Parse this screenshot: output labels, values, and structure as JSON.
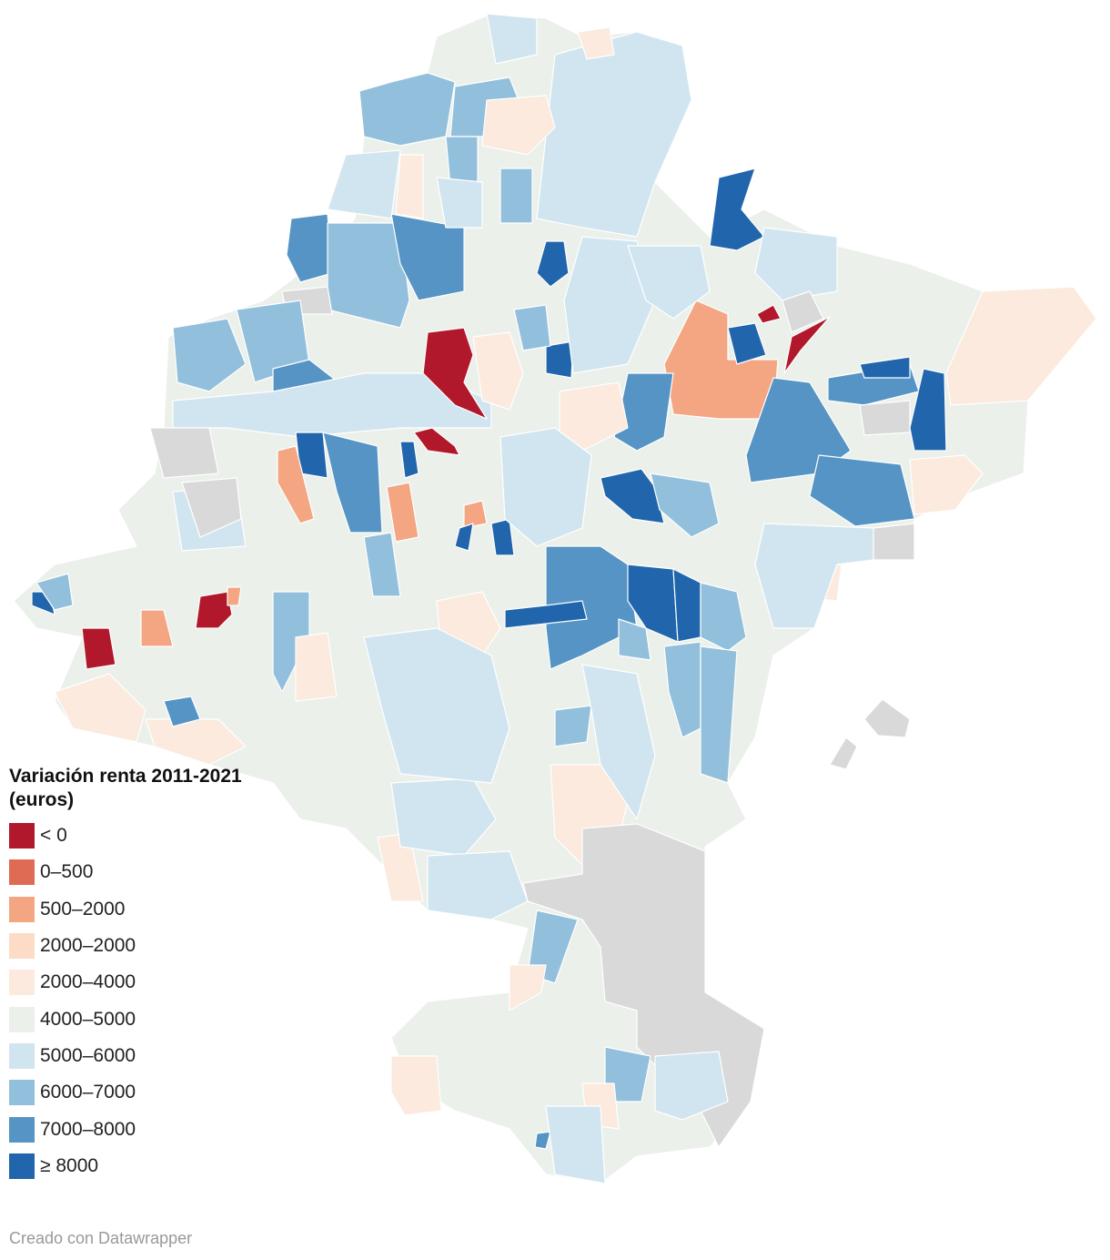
{
  "legend": {
    "title": "Variación renta 2011-2021\n(euros)",
    "items": [
      {
        "label": "< 0",
        "color": "#b2182b"
      },
      {
        "label": "0–500",
        "color": "#e06b55"
      },
      {
        "label": "500–2000",
        "color": "#f4a582"
      },
      {
        "label": "2000–2000",
        "color": "#fcdbc7"
      },
      {
        "label": "2000–4000",
        "color": "#fbeadd"
      },
      {
        "label": "4000–5000",
        "color": "#ebf0ea"
      },
      {
        "label": "5000–6000",
        "color": "#d1e5f0"
      },
      {
        "label": "6000–7000",
        "color": "#92c0dc"
      },
      {
        "label": "7000–8000",
        "color": "#5594c5"
      },
      {
        "label": "≥ 8000",
        "color": "#2166ac"
      }
    ]
  },
  "nodata_color": "#d9d9d9",
  "credit": "Creado con Datawrapper"
}
